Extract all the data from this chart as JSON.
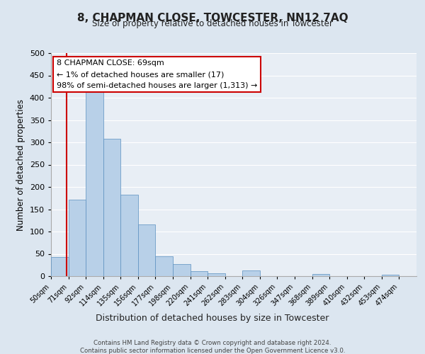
{
  "title": "8, CHAPMAN CLOSE, TOWCESTER, NN12 7AQ",
  "subtitle": "Size of property relative to detached houses in Towcester",
  "xlabel": "Distribution of detached houses by size in Towcester",
  "ylabel": "Number of detached properties",
  "bin_labels": [
    "50sqm",
    "71sqm",
    "92sqm",
    "114sqm",
    "135sqm",
    "156sqm",
    "177sqm",
    "198sqm",
    "220sqm",
    "241sqm",
    "262sqm",
    "283sqm",
    "304sqm",
    "326sqm",
    "347sqm",
    "368sqm",
    "389sqm",
    "410sqm",
    "432sqm",
    "453sqm",
    "474sqm"
  ],
  "bar_heights": [
    43,
    172,
    418,
    308,
    183,
    116,
    45,
    27,
    11,
    6,
    0,
    12,
    0,
    0,
    0,
    4,
    0,
    0,
    0,
    3,
    0
  ],
  "bar_color": "#b8d0e8",
  "bar_edge_color": "#5a8fc0",
  "subject_line_color": "#cc0000",
  "ylim": [
    0,
    500
  ],
  "yticks": [
    0,
    50,
    100,
    150,
    200,
    250,
    300,
    350,
    400,
    450,
    500
  ],
  "annotation_title": "8 CHAPMAN CLOSE: 69sqm",
  "annotation_line1": "← 1% of detached houses are smaller (17)",
  "annotation_line2": "98% of semi-detached houses are larger (1,313) →",
  "annotation_box_color": "#ffffff",
  "annotation_box_edge": "#cc0000",
  "footnote1": "Contains HM Land Registry data © Crown copyright and database right 2024.",
  "footnote2": "Contains public sector information licensed under the Open Government Licence v3.0.",
  "bg_color": "#dce6f0",
  "plot_bg_color": "#e8eef5"
}
